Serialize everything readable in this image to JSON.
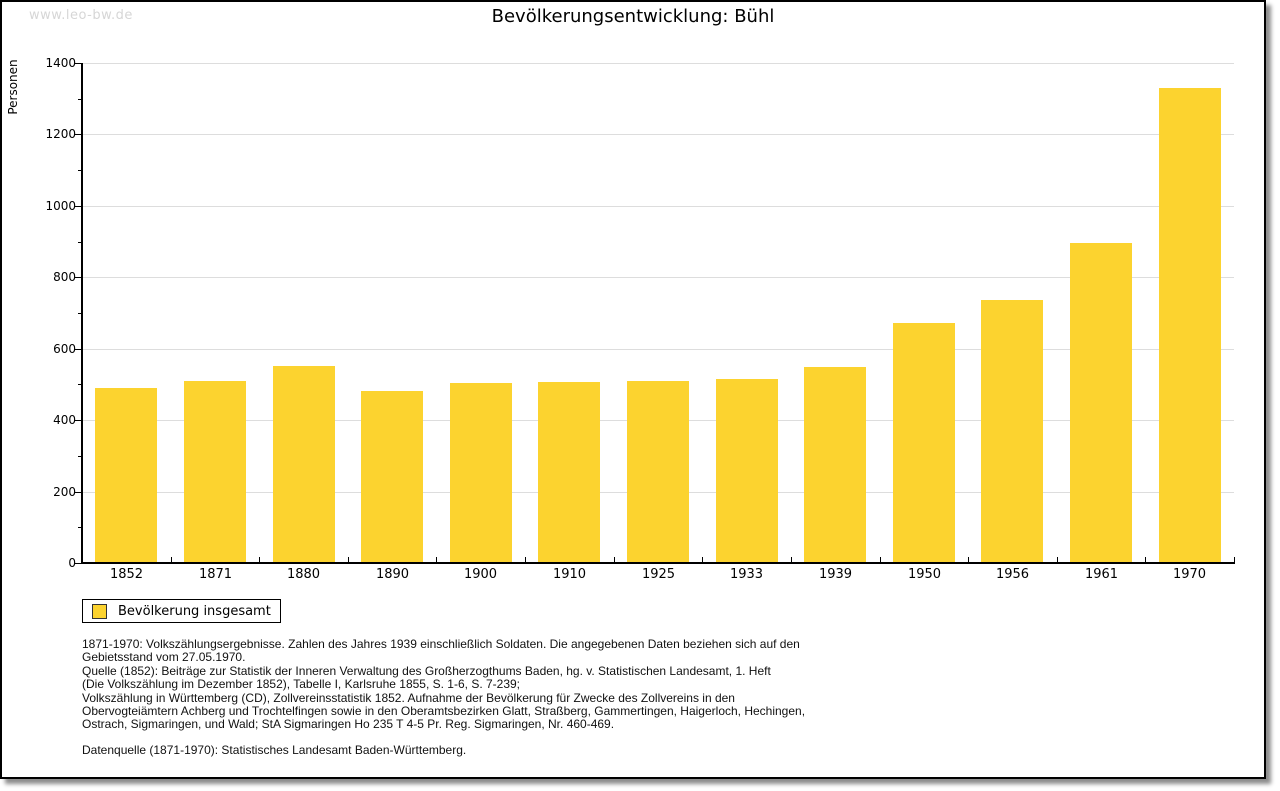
{
  "page": {
    "watermark": "www.leo-bw.de"
  },
  "chart_data": {
    "type": "bar",
    "title": "Bevölkerungsentwicklung: Bühl",
    "ylabel": "Personen",
    "xlabel": "",
    "categories": [
      "1852",
      "1871",
      "1880",
      "1890",
      "1900",
      "1910",
      "1925",
      "1933",
      "1939",
      "1950",
      "1956",
      "1961",
      "1970"
    ],
    "values": [
      490,
      510,
      552,
      483,
      505,
      508,
      511,
      516,
      549,
      673,
      736,
      897,
      1330
    ],
    "ylim": [
      0,
      1400
    ],
    "y_major_step": 200,
    "y_minor_step": 100,
    "grid": true,
    "bar_color": "#fcd32f",
    "grid_color": "#dddddd",
    "legend": {
      "position": "bottom-left",
      "entries": [
        {
          "label": "Bevölkerung insgesamt",
          "color": "#fcd32f"
        }
      ]
    }
  },
  "footnotes": {
    "lines": [
      "1871-1970: Volkszählungsergebnisse. Zahlen des Jahres 1939 einschließlich Soldaten. Die angegebenen Daten beziehen sich auf den",
      "Gebietsstand vom 27.05.1970.",
      "Quelle (1852): Beiträge zur Statistik der Inneren Verwaltung des Großherzogthums Baden, hg. v. Statistischen Landesamt, 1. Heft",
      "(Die Volkszählung im Dezember 1852), Tabelle I, Karlsruhe 1855, S. 1-6, S. 7-239;",
      "Volkszählung in Württemberg (CD), Zollvereinsstatistik 1852. Aufnahme der Bevölkerung für Zwecke des Zollvereins in den",
      "Obervogteiämtern Achberg und Trochtelfingen sowie in den Oberamtsbezirken Glatt, Straßberg, Gammertingen, Haigerloch, Hechingen,",
      "Ostrach, Sigmaringen, und Wald; StA Sigmaringen Ho 235 T 4-5 Pr. Reg. Sigmaringen, Nr. 460-469."
    ],
    "datasource": "Datenquelle (1871-1970): Statistisches Landesamt Baden-Württemberg."
  }
}
